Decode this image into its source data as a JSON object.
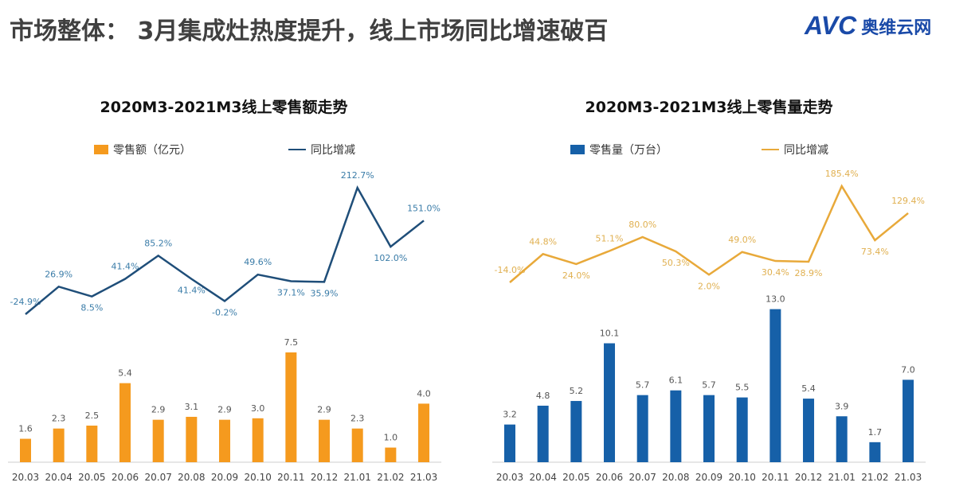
{
  "header": {
    "title": "市场整体： 3月集成灶热度提升，线上市场同比增速破百",
    "logo_text": "AVC",
    "logo_cn": "奥维云网"
  },
  "colors": {
    "orange": "#F59A1E",
    "navy": "#1F4E79",
    "blue": "#1660A8",
    "gold": "#E8A93A"
  },
  "chart_data": [
    {
      "type": "bar+line",
      "title": "2020M3-2021M3线上零售额走势",
      "categories": [
        "20.03",
        "20.04",
        "20.05",
        "20.06",
        "20.07",
        "20.08",
        "20.09",
        "20.10",
        "20.11",
        "20.12",
        "21.01",
        "21.02",
        "21.03"
      ],
      "series": [
        {
          "name": "零售额（亿元）",
          "type": "bar",
          "values": [
            1.6,
            2.3,
            2.5,
            5.4,
            2.9,
            3.1,
            2.9,
            3.0,
            7.5,
            2.9,
            2.3,
            1.0,
            4.0
          ],
          "labels": [
            "1.6",
            "2.3",
            "2.5",
            "5.4",
            "2.9",
            "3.1",
            "2.9",
            "3.0",
            "7.5",
            "2.9",
            "2.3",
            "1.0",
            "4.0"
          ]
        },
        {
          "name": "同比增减",
          "type": "line",
          "values": [
            -24.9,
            26.9,
            8.5,
            41.4,
            85.2,
            41.4,
            -0.2,
            49.6,
            37.1,
            35.9,
            212.7,
            102.0,
            151.0
          ],
          "labels": [
            "-24.9%",
            "26.9%",
            "8.5%",
            "41.4%",
            "85.2%",
            "41.4%",
            "-0.2%",
            "49.6%",
            "37.1%",
            "35.9%",
            "212.7%",
            "102.0%",
            "151.0%"
          ]
        }
      ],
      "legend": "top"
    },
    {
      "type": "bar+line",
      "title": "2020M3-2021M3线上零售量走势",
      "categories": [
        "20.03",
        "20.04",
        "20.05",
        "20.06",
        "20.07",
        "20.08",
        "20.09",
        "20.10",
        "20.11",
        "20.12",
        "21.01",
        "21.02",
        "21.03"
      ],
      "series": [
        {
          "name": "零售量（万台）",
          "type": "bar",
          "values": [
            3.2,
            4.8,
            5.2,
            10.1,
            5.7,
            6.1,
            5.7,
            5.5,
            13.0,
            5.4,
            3.9,
            1.7,
            7.0
          ],
          "labels": [
            "3.2",
            "4.8",
            "5.2",
            "10.1",
            "5.7",
            "6.1",
            "5.7",
            "5.5",
            "13.0",
            "5.4",
            "3.9",
            "1.7",
            "7.0"
          ]
        },
        {
          "name": "同比增减",
          "type": "line",
          "values": [
            -14.0,
            44.8,
            24.0,
            51.1,
            80.0,
            50.3,
            2.0,
            49.0,
            30.4,
            28.9,
            185.4,
            73.4,
            129.4
          ],
          "labels": [
            "-14.0%",
            "44.8%",
            "24.0%",
            "51.1%",
            "80.0%",
            "50.3%",
            "2.0%",
            "49.0%",
            "30.4%",
            "28.9%",
            "185.4%",
            "73.4%",
            "129.4%"
          ]
        }
      ],
      "legend": "top"
    }
  ]
}
